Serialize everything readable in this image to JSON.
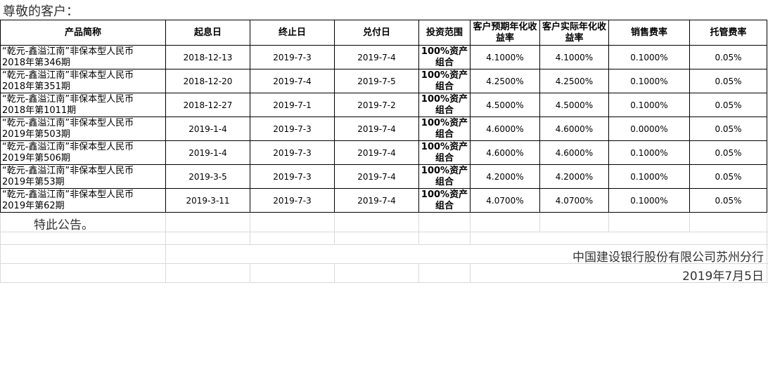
{
  "greeting": "尊敬的客户：",
  "table": {
    "headers": [
      "产品简称",
      "起息日",
      "终止日",
      "兑付日",
      "投资范围",
      "客户预期年化收益率",
      "客户实际年化收益率",
      "销售费率",
      "托管费率"
    ],
    "rows": [
      {
        "name_line1": "“乾元-鑫溢江南”非保本型人民币",
        "name_line2": "2018年第346期",
        "start": "2018-12-13",
        "end": "2019-7-3",
        "pay": "2019-7-4",
        "scope": "100%资产组合",
        "expected": "4.1000%",
        "actual": "4.1000%",
        "sales_fee": "0.1000%",
        "custody_fee": "0.05%"
      },
      {
        "name_line1": "“乾元-鑫溢江南”非保本型人民币",
        "name_line2": "2018年第351期",
        "start": "2018-12-20",
        "end": "2019-7-4",
        "pay": "2019-7-5",
        "scope": "100%资产组合",
        "expected": "4.2500%",
        "actual": "4.2500%",
        "sales_fee": "0.1000%",
        "custody_fee": "0.05%"
      },
      {
        "name_line1": "“乾元-鑫溢江南”非保本型人民币",
        "name_line2": "2018年第1011期",
        "start": "2018-12-27",
        "end": "2019-7-1",
        "pay": "2019-7-2",
        "scope": "100%资产组合",
        "expected": "4.5000%",
        "actual": "4.5000%",
        "sales_fee": "0.1000%",
        "custody_fee": "0.05%"
      },
      {
        "name_line1": "“乾元-鑫溢江南”非保本型人民币",
        "name_line2": "2019年第503期",
        "start": "2019-1-4",
        "end": "2019-7-3",
        "pay": "2019-7-4",
        "scope": "100%资产组合",
        "expected": "4.6000%",
        "actual": "4.6000%",
        "sales_fee": "0.0000%",
        "custody_fee": "0.05%"
      },
      {
        "name_line1": "“乾元-鑫溢江南”非保本型人民币",
        "name_line2": "2019年第506期",
        "start": "2019-1-4",
        "end": "2019-7-3",
        "pay": "2019-7-4",
        "scope": "100%资产组合",
        "expected": "4.6000%",
        "actual": "4.6000%",
        "sales_fee": "0.1000%",
        "custody_fee": "0.05%"
      },
      {
        "name_line1": "“乾元-鑫溢江南”非保本型人民币",
        "name_line2": "2019年第53期",
        "start": "2019-3-5",
        "end": "2019-7-3",
        "pay": "2019-7-4",
        "scope": "100%资产组合",
        "expected": "4.2000%",
        "actual": "4.2000%",
        "sales_fee": "0.1000%",
        "custody_fee": "0.05%"
      },
      {
        "name_line1": "“乾元-鑫溢江南”非保本型人民币",
        "name_line2": "2019年第62期",
        "start": "2019-3-11",
        "end": "2019-7-3",
        "pay": "2019-7-4",
        "scope": "100%资产组合",
        "expected": "4.0700%",
        "actual": "4.0700%",
        "sales_fee": "0.1000%",
        "custody_fee": "0.05%"
      }
    ]
  },
  "notice": "特此公告。",
  "bank": "中国建设银行股份有限公司苏州分行",
  "date": "2019年7月5日"
}
